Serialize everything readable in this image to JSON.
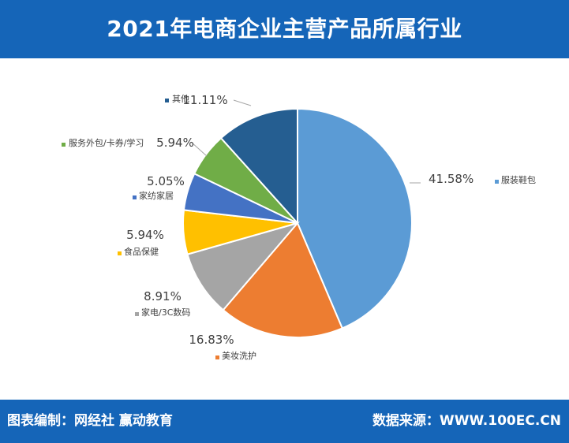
{
  "header": {
    "title": "2021年电商企业主营产品所属行业"
  },
  "footer": {
    "left": "图表编制：网经社  赢动教育",
    "right": "数据来源：WWW.100EC.CN"
  },
  "chart_data": {
    "type": "pie",
    "title": "2021年电商企业主营产品所属行业",
    "slices": [
      {
        "name": "服装鞋包",
        "value": 41.58,
        "label": "41.58%",
        "color": "#5b9bd5"
      },
      {
        "name": "美妆洗护",
        "value": 16.83,
        "label": "16.83%",
        "color": "#ed7d31"
      },
      {
        "name": "家电/3C数码",
        "value": 8.91,
        "label": "8.91%",
        "color": "#a5a5a5"
      },
      {
        "name": "食品保健",
        "value": 5.94,
        "label": "5.94%",
        "color": "#ffc000"
      },
      {
        "name": "家纺家居",
        "value": 5.05,
        "label": "5.05%",
        "color": "#4472c4"
      },
      {
        "name": "服务外包/卡券/学习",
        "value": 5.94,
        "label": "5.94%",
        "color": "#70ad47"
      },
      {
        "name": "其他",
        "value": 11.11,
        "label": "11.11%",
        "color": "#255e91"
      }
    ],
    "start": "12 o'clock",
    "direction": "clockwise",
    "legend": "beside each data label"
  }
}
